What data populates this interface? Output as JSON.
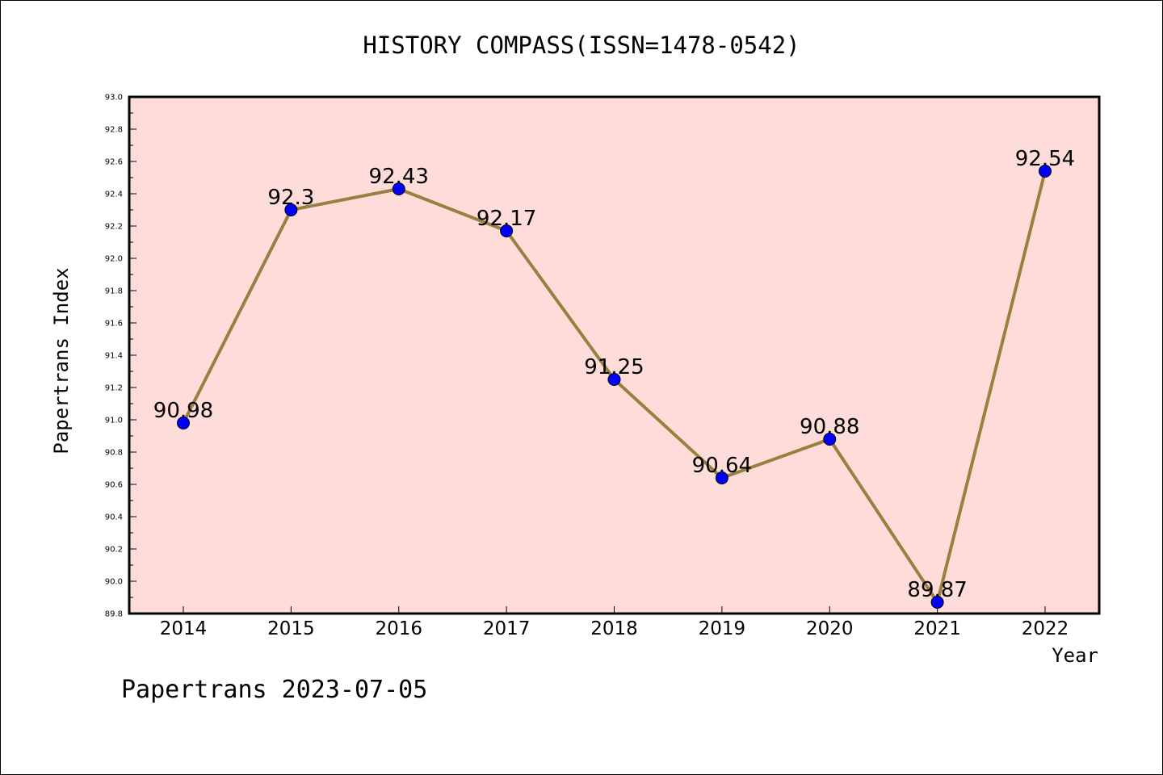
{
  "footer": {
    "text": "Papertrans 2023-07-05"
  },
  "colors": {
    "plot_background": "#fddcda",
    "line": "#9a8040",
    "marker": "#0000ff"
  },
  "chart_data": {
    "type": "line",
    "title": "HISTORY COMPASS(ISSN=1478-0542)",
    "xlabel": "Year",
    "ylabel": "Papertrans Index",
    "categories": [
      "2014",
      "2015",
      "2016",
      "2017",
      "2018",
      "2019",
      "2020",
      "2021",
      "2022"
    ],
    "series": [
      {
        "values": [
          90.98,
          92.3,
          92.43,
          92.17,
          91.25,
          90.64,
          90.88,
          89.87,
          92.54
        ],
        "data_labels": [
          "90.98",
          "92.3",
          "92.43",
          "92.17",
          "91.25",
          "90.64",
          "90.88",
          "89.87",
          "92.54"
        ]
      }
    ],
    "ylim": [
      89.8,
      93.0
    ],
    "y_ticks": [
      "89.8",
      "90.0",
      "90.2",
      "90.4",
      "90.6",
      "90.8",
      "91.0",
      "91.2",
      "91.4",
      "91.6",
      "91.8",
      "92.0",
      "92.2",
      "92.4",
      "92.6",
      "92.8",
      "93.0"
    ],
    "y_minor_step": 0.1,
    "grid": false,
    "legend": "none"
  }
}
